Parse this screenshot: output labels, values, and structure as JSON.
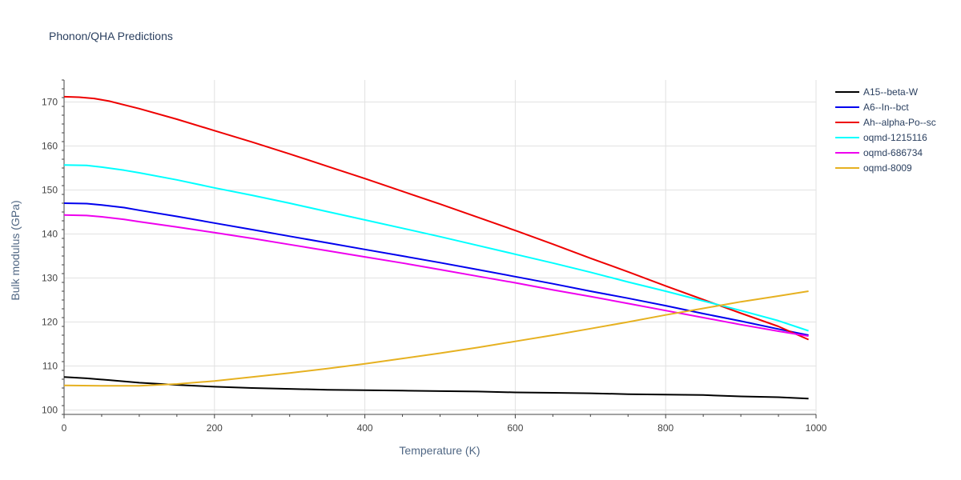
{
  "chart_data": {
    "type": "line",
    "title": "Phonon/QHA Predictions",
    "xlabel": "Temperature (K)",
    "ylabel": "Bulk modulus (GPa)",
    "xlim": [
      0,
      1000
    ],
    "ylim": [
      99,
      175
    ],
    "xticks": [
      0,
      200,
      400,
      600,
      800,
      1000
    ],
    "yticks": [
      100,
      110,
      120,
      130,
      140,
      150,
      160,
      170
    ],
    "grid": true,
    "legend_position": "right",
    "series": [
      {
        "name": "A15--beta-W",
        "color": "#000000",
        "x": [
          0,
          30,
          60,
          100,
          150,
          200,
          250,
          300,
          350,
          400,
          450,
          500,
          550,
          600,
          650,
          700,
          750,
          800,
          850,
          900,
          950,
          990
        ],
        "y": [
          107.5,
          107.2,
          106.8,
          106.2,
          105.7,
          105.3,
          105.0,
          104.8,
          104.6,
          104.5,
          104.4,
          104.3,
          104.2,
          104.0,
          103.9,
          103.8,
          103.6,
          103.5,
          103.4,
          103.1,
          102.9,
          102.6
        ]
      },
      {
        "name": "A6--In--bct",
        "color": "#0000ee",
        "x": [
          0,
          30,
          50,
          80,
          100,
          150,
          200,
          250,
          300,
          350,
          400,
          450,
          500,
          550,
          600,
          650,
          700,
          750,
          800,
          850,
          900,
          950,
          990
        ],
        "y": [
          147.0,
          146.9,
          146.6,
          146.0,
          145.4,
          144.0,
          142.5,
          141.0,
          139.5,
          138.0,
          136.5,
          135.0,
          133.5,
          131.9,
          130.3,
          128.7,
          127.0,
          125.4,
          123.7,
          121.9,
          120.2,
          118.4,
          117.0
        ]
      },
      {
        "name": "Ah--alpha-Po--sc",
        "color": "#ee0000",
        "x": [
          0,
          20,
          40,
          60,
          100,
          150,
          200,
          250,
          300,
          350,
          400,
          450,
          500,
          550,
          600,
          650,
          700,
          750,
          800,
          850,
          900,
          950,
          990
        ],
        "y": [
          171.2,
          171.1,
          170.8,
          170.2,
          168.5,
          166.1,
          163.5,
          160.9,
          158.2,
          155.4,
          152.6,
          149.7,
          146.8,
          143.8,
          140.8,
          137.7,
          134.5,
          131.4,
          128.2,
          125.1,
          122.0,
          119.0,
          116.0
        ]
      },
      {
        "name": "oqmd-1215116",
        "color": "#00ffff",
        "x": [
          0,
          30,
          50,
          80,
          100,
          150,
          200,
          250,
          300,
          350,
          400,
          450,
          500,
          550,
          600,
          650,
          700,
          750,
          800,
          850,
          900,
          950,
          990
        ],
        "y": [
          155.7,
          155.6,
          155.2,
          154.5,
          153.9,
          152.3,
          150.5,
          148.8,
          147.0,
          145.1,
          143.2,
          141.3,
          139.4,
          137.4,
          135.4,
          133.4,
          131.3,
          129.1,
          127.0,
          124.8,
          122.6,
          120.3,
          118.0
        ]
      },
      {
        "name": "oqmd-686734",
        "color": "#ee00ee",
        "x": [
          0,
          30,
          50,
          80,
          100,
          150,
          200,
          250,
          300,
          350,
          400,
          450,
          500,
          550,
          600,
          650,
          700,
          750,
          800,
          850,
          900,
          950,
          990
        ],
        "y": [
          144.3,
          144.2,
          143.9,
          143.3,
          142.8,
          141.6,
          140.3,
          139.0,
          137.6,
          136.2,
          134.8,
          133.4,
          131.9,
          130.4,
          128.9,
          127.3,
          125.8,
          124.2,
          122.6,
          121.0,
          119.4,
          117.9,
          116.8
        ]
      },
      {
        "name": "oqmd-8009",
        "color": "#e6b121",
        "x": [
          0,
          50,
          100,
          150,
          200,
          250,
          300,
          350,
          400,
          450,
          500,
          550,
          600,
          650,
          700,
          750,
          800,
          850,
          900,
          950,
          990
        ],
        "y": [
          105.6,
          105.5,
          105.5,
          105.9,
          106.6,
          107.5,
          108.4,
          109.4,
          110.5,
          111.7,
          112.9,
          114.2,
          115.6,
          117.0,
          118.5,
          120.0,
          121.6,
          123.1,
          124.6,
          125.9,
          127.0
        ]
      }
    ]
  }
}
